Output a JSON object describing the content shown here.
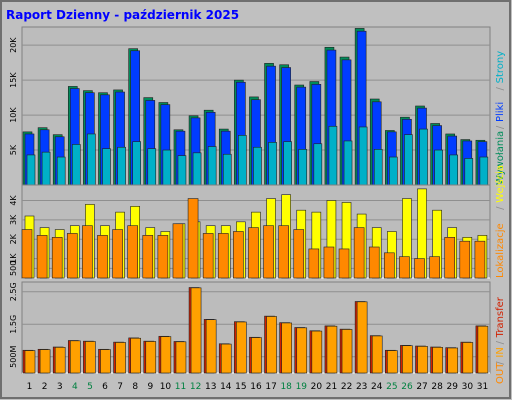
{
  "title": "Raport Dzienny - październik 2025",
  "colors": {
    "background": "#c0c0c0",
    "frame_border": "#6f6f6f",
    "panel": "#bcbcbc",
    "grid": "#8f8f8f",
    "title": "#0000ff",
    "odwiedziny": "#0a0ae0",
    "strony": "#00b0c8",
    "pliki": "#003cff",
    "trafienia": "#008c5a",
    "wejscia": "#ffff00",
    "lokalizacje": "#ff8800",
    "transfer": "#d02000",
    "in": "#ffa000",
    "out": "#ff8800",
    "weekend_label": "#008040",
    "weekday_label": "#000000"
  },
  "chart_data": [
    {
      "type": "bar",
      "panel": "top",
      "x": [
        1,
        2,
        3,
        4,
        5,
        6,
        7,
        8,
        9,
        10,
        11,
        12,
        13,
        14,
        15,
        16,
        17,
        18,
        19,
        20,
        21,
        22,
        23,
        24,
        25,
        26,
        27,
        28,
        29,
        30,
        31
      ],
      "yticks": [
        "5K",
        "10K",
        "15K",
        "20K"
      ],
      "ytick_values": [
        5000,
        10000,
        15000,
        20000
      ],
      "ylim": [
        0,
        22600
      ],
      "series": [
        {
          "name": "Wywołania",
          "color_key": "trafienia",
          "values": [
            7600,
            8200,
            7200,
            14100,
            13500,
            13200,
            13600,
            19500,
            12500,
            11800,
            7900,
            9900,
            10700,
            8000,
            15000,
            12600,
            17400,
            17200,
            14300,
            14800,
            19700,
            18300,
            22400,
            12300,
            7800,
            9700,
            11300,
            8800,
            7300,
            6500,
            6400
          ]
        },
        {
          "name": "Pliki",
          "color_key": "pliki",
          "values": [
            7300,
            7900,
            6900,
            13800,
            13200,
            12900,
            13300,
            19200,
            12100,
            11500,
            7700,
            9600,
            10400,
            7700,
            14700,
            12200,
            17000,
            16800,
            14000,
            14400,
            19300,
            17900,
            22000,
            11900,
            7600,
            9400,
            11000,
            8500,
            7000,
            6300,
            6200
          ]
        },
        {
          "name": "Strony",
          "color_key": "strony",
          "values": [
            4300,
            4700,
            4000,
            5800,
            7300,
            5200,
            5400,
            6200,
            5200,
            5000,
            4200,
            4600,
            5500,
            4400,
            7100,
            5400,
            6100,
            6200,
            5100,
            5900,
            8400,
            6300,
            8300,
            5100,
            4000,
            7200,
            8000,
            5000,
            4300,
            3800,
            4000
          ]
        }
      ]
    },
    {
      "type": "bar",
      "panel": "middle",
      "x": [
        1,
        2,
        3,
        4,
        5,
        6,
        7,
        8,
        9,
        10,
        11,
        12,
        13,
        14,
        15,
        16,
        17,
        18,
        19,
        20,
        21,
        22,
        23,
        24,
        25,
        26,
        27,
        28,
        29,
        30,
        31
      ],
      "yticks": [
        "500",
        "1K",
        "2K",
        "3K",
        "4K"
      ],
      "ytick_values": [
        500,
        1000,
        2000,
        3000,
        4000
      ],
      "ylim": [
        0,
        4800
      ],
      "series": [
        {
          "name": "Wejścia",
          "color_key": "wejscia",
          "values": [
            3200,
            2600,
            2500,
            2700,
            3800,
            2700,
            3400,
            3700,
            2600,
            2400,
            2800,
            2900,
            2700,
            2700,
            2900,
            3400,
            4100,
            4300,
            3500,
            3400,
            4000,
            3900,
            3300,
            2600,
            2400,
            4100,
            4600,
            3500,
            2600,
            2100,
            2200
          ]
        },
        {
          "name": "Lokalizacje",
          "color_key": "lokalizacje",
          "values": [
            2500,
            2200,
            2100,
            2300,
            2700,
            2200,
            2500,
            2700,
            2200,
            2200,
            2800,
            4100,
            2300,
            2300,
            2400,
            2600,
            2700,
            2700,
            2500,
            1500,
            1600,
            1500,
            2600,
            1600,
            1300,
            1100,
            1000,
            1100,
            2100,
            1900,
            1900
          ]
        }
      ]
    },
    {
      "type": "bar",
      "panel": "bottom",
      "x": [
        1,
        2,
        3,
        4,
        5,
        6,
        7,
        8,
        9,
        10,
        11,
        12,
        13,
        14,
        15,
        16,
        17,
        18,
        19,
        20,
        21,
        22,
        23,
        24,
        25,
        26,
        27,
        28,
        29,
        30,
        31
      ],
      "yticks": [
        "500M",
        "1.5G",
        "2.5G"
      ],
      "ytick_values": [
        0.5,
        1.5,
        2.5
      ],
      "ylim": [
        0,
        2.8
      ],
      "series": [
        {
          "name": "Transfer",
          "color_key": "transfer",
          "values": [
            0.7,
            0.73,
            0.8,
            1.0,
            0.98,
            0.73,
            0.95,
            1.08,
            0.98,
            1.13,
            0.97,
            2.63,
            1.65,
            0.9,
            1.58,
            1.1,
            1.75,
            1.55,
            1.4,
            1.3,
            1.45,
            1.35,
            2.2,
            1.15,
            0.7,
            0.85,
            0.83,
            0.8,
            0.78,
            0.95,
            1.45
          ]
        },
        {
          "name": "IN",
          "color_key": "in",
          "values": [
            0.69,
            0.72,
            0.79,
            0.99,
            0.97,
            0.72,
            0.94,
            1.07,
            0.97,
            1.12,
            0.96,
            2.62,
            1.64,
            0.89,
            1.57,
            1.09,
            1.74,
            1.54,
            1.39,
            1.29,
            1.44,
            1.34,
            2.19,
            1.14,
            0.69,
            0.84,
            0.82,
            0.79,
            0.77,
            0.94,
            1.44
          ]
        }
      ]
    }
  ],
  "x_labels": [
    "1",
    "2",
    "3",
    "4",
    "5",
    "6",
    "7",
    "8",
    "9",
    "10",
    "11",
    "12",
    "13",
    "14",
    "15",
    "16",
    "17",
    "18",
    "19",
    "20",
    "21",
    "22",
    "23",
    "24",
    "25",
    "26",
    "27",
    "28",
    "29",
    "30",
    "31"
  ],
  "weekend_days": [
    4,
    5,
    11,
    12,
    18,
    19,
    25,
    26
  ],
  "right_legend_top": [
    {
      "text": "Wywołania",
      "color_key": "trafienia"
    },
    {
      "text": "/",
      "color_key": "grid"
    },
    {
      "text": "Pliki",
      "color_key": "pliki"
    },
    {
      "text": "/",
      "color_key": "grid"
    },
    {
      "text": "Strony",
      "color_key": "strony"
    }
  ],
  "right_legend_mid": [
    {
      "text": "Lokalizacje",
      "color_key": "lokalizacje"
    },
    {
      "text": "/",
      "color_key": "grid"
    },
    {
      "text": "Wejścia",
      "color_key": "wejscia"
    }
  ],
  "right_legend_bot": [
    {
      "text": "OUT",
      "color_key": "out"
    },
    {
      "text": "/",
      "color_key": "grid"
    },
    {
      "text": "IN",
      "color_key": "in"
    },
    {
      "text": "/",
      "color_key": "grid"
    },
    {
      "text": "Transfer",
      "color_key": "transfer"
    }
  ]
}
